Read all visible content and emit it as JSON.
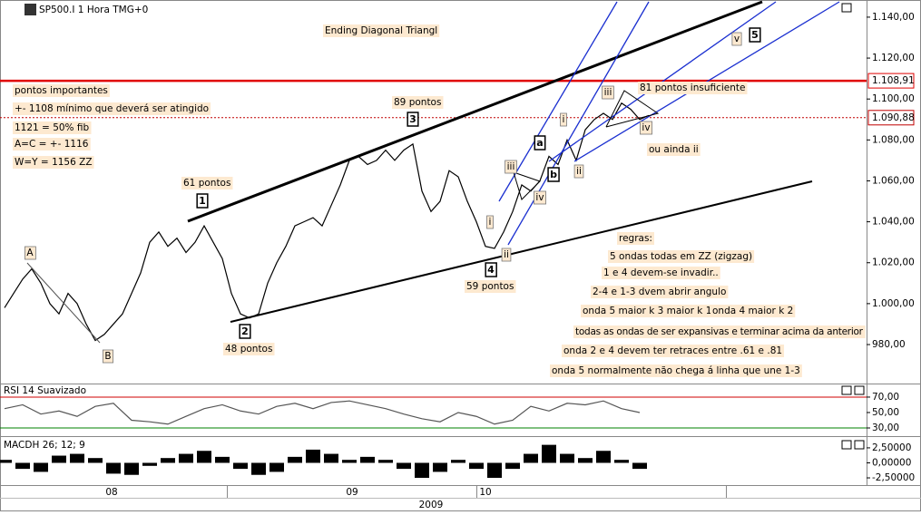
{
  "chart_data": [
    {
      "type": "line",
      "title": "SP500.I 1 Hora TMG+0",
      "color": "#000000",
      "x": [
        0,
        1,
        2,
        3,
        4,
        5,
        6,
        7,
        8,
        9,
        10,
        11,
        12,
        13,
        14,
        15,
        16,
        17,
        18,
        19,
        20,
        21,
        22,
        23,
        24,
        25,
        26,
        27,
        28,
        29,
        30,
        31,
        32,
        33,
        34,
        35,
        36,
        37,
        38,
        39,
        40,
        41,
        42,
        43,
        44,
        45,
        46,
        47,
        48,
        49,
        50,
        51,
        52,
        53,
        54,
        55,
        56,
        57,
        58,
        59,
        60,
        61,
        62,
        63,
        64,
        65,
        66,
        67,
        68,
        69,
        70,
        71
      ],
      "values": [
        998,
        1005,
        1012,
        1017,
        1010,
        1000,
        995,
        1005,
        1000,
        990,
        982,
        985,
        990,
        995,
        1005,
        1015,
        1030,
        1035,
        1028,
        1032,
        1025,
        1030,
        1038,
        1030,
        1022,
        1005,
        995,
        993,
        995,
        1010,
        1020,
        1028,
        1038,
        1040,
        1042,
        1038,
        1048,
        1058,
        1070,
        1072,
        1068,
        1070,
        1075,
        1070,
        1075,
        1078,
        1055,
        1045,
        1050,
        1065,
        1062,
        1050,
        1040,
        1028,
        1027,
        1035,
        1045,
        1058,
        1055,
        1060,
        1072,
        1068,
        1080,
        1070,
        1085,
        1090,
        1093,
        1090,
        1098,
        1095,
        1090,
        1092
      ],
      "xlim": [
        -0.5,
        95
      ],
      "ylim": [
        961.4,
        1147.5
      ],
      "yticks": [
        {
          "value": 1140,
          "label": "1.140,00"
        },
        {
          "value": 1120,
          "label": "1.120,00"
        },
        {
          "value": 1100,
          "label": "1.100,00"
        },
        {
          "value": 1080,
          "label": "1.080,00"
        },
        {
          "value": 1060,
          "label": "1.060,00"
        },
        {
          "value": 1040,
          "label": "1.040,00"
        },
        {
          "value": 1020,
          "label": "1.020,00"
        },
        {
          "value": 1000,
          "label": "1.000,00"
        },
        {
          "value": 980,
          "label": "980,00"
        }
      ],
      "reference_lines": [
        {
          "value": 1108.91,
          "label": "1.108,91",
          "color": "#e00000",
          "style": "solid"
        },
        {
          "value": 1090.88,
          "label": "1.090,88",
          "color": "#c00000",
          "style": "dotted"
        }
      ],
      "annotations": [
        "Ending Diagonal Triangl",
        "pontos importantes",
        "+- 1108 mínimo que deverá ser atingido",
        "1121 = 50% fib",
        "A=C = +- 1116",
        "W=Y = 1156 ZZ",
        "61 pontos",
        "89 pontos",
        "48 pontos",
        "59  pontos",
        "81 pontos insuficiente",
        "ou ainda ii",
        "regras:",
        "5 ondas todas em ZZ (zigzag)",
        "1 e 4 devem-se invadir..",
        "2-4 e 1-3 dvem abrir angulo",
        "onda 5 maior k 3 maior k 1",
        "onda 4 maior k 2",
        "todas as ondas de ser expansivas e terminar acima da anterior",
        "onda 2 e 4 devem ter retraces entre .61 e .81",
        "onda 5 normalmente não chega á linha que une 1-3"
      ],
      "wave_labels": [
        "1",
        "2",
        "3",
        "4",
        "5",
        "a",
        "b",
        "A",
        "B",
        "i",
        "ii",
        "iii",
        "iv",
        "i",
        "ii",
        "iii",
        "iv",
        "v"
      ]
    },
    {
      "type": "line",
      "title": "RSI 14 Suavizado",
      "color": "#555555",
      "x": [
        0,
        2,
        4,
        6,
        8,
        10,
        12,
        14,
        16,
        18,
        20,
        22,
        24,
        26,
        28,
        30,
        32,
        34,
        36,
        38,
        40,
        42,
        44,
        46,
        48,
        50,
        52,
        54,
        56,
        58,
        60,
        62,
        64,
        66,
        68,
        70
      ],
      "values": [
        55,
        60,
        48,
        52,
        45,
        58,
        62,
        40,
        38,
        35,
        45,
        55,
        60,
        52,
        48,
        58,
        62,
        55,
        63,
        65,
        60,
        55,
        48,
        42,
        38,
        50,
        45,
        35,
        40,
        58,
        52,
        62,
        60,
        65,
        55,
        50
      ],
      "xlim": [
        -0.5,
        95
      ],
      "ylim": [
        20.6,
        77
      ],
      "yticks": [
        {
          "value": 70,
          "label": "70,00"
        },
        {
          "value": 50,
          "label": "50,00"
        },
        {
          "value": 30,
          "label": "30,00"
        }
      ],
      "reference_lines": [
        {
          "value": 70,
          "color": "#d00000"
        },
        {
          "value": 30,
          "color": "#008000"
        }
      ]
    },
    {
      "type": "bar",
      "title": "MACDH 26; 12; 9",
      "color": "#000000",
      "x": [
        0,
        2,
        4,
        6,
        8,
        10,
        12,
        14,
        16,
        18,
        20,
        22,
        24,
        26,
        28,
        30,
        32,
        34,
        36,
        38,
        40,
        42,
        44,
        46,
        48,
        50,
        52,
        54,
        56,
        58,
        60,
        62,
        64,
        66,
        68,
        70
      ],
      "values": [
        0.5,
        -1,
        -1.5,
        1.2,
        1.5,
        0.8,
        -1.8,
        -2,
        -0.5,
        0.8,
        1.5,
        2,
        1,
        -1,
        -2,
        -1.5,
        1,
        2.2,
        1.5,
        0.5,
        1,
        0.5,
        -1,
        -2.5,
        -1.5,
        0.5,
        -1,
        -2.5,
        -1,
        1.5,
        3,
        1.5,
        0.8,
        2,
        0.5,
        -1
      ],
      "xlim": [
        -0.5,
        95
      ],
      "ylim": [
        -3.4,
        4.0
      ],
      "yticks": [
        {
          "value": 2.5,
          "label": "2,50000"
        },
        {
          "value": 0,
          "label": "0,00000"
        },
        {
          "value": -2.5,
          "label": "-2,50000"
        }
      ],
      "xticks": [
        {
          "value": 11.8,
          "label": "08"
        },
        {
          "value": 38.3,
          "label": "09"
        },
        {
          "value": 53,
          "label": "10"
        }
      ],
      "xlabel": "2009"
    }
  ]
}
